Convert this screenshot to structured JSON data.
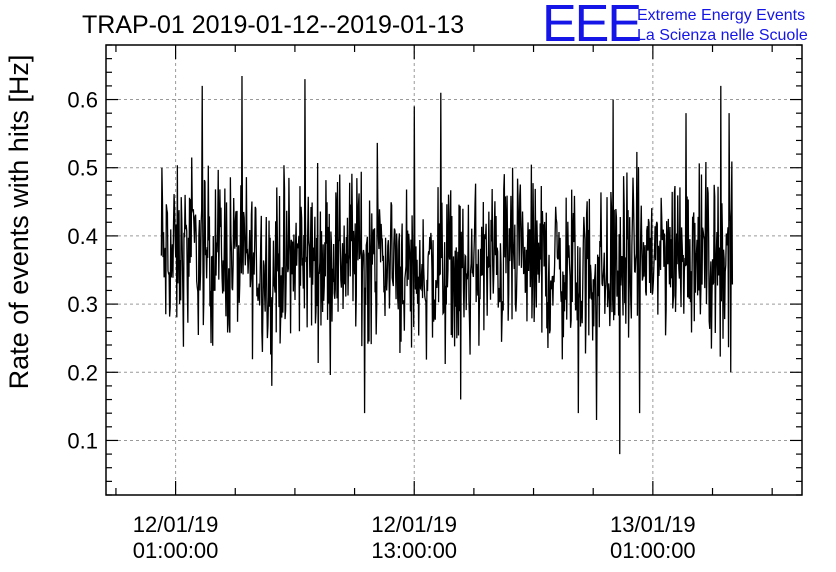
{
  "header": {
    "title": "TRAP-01 2019-01-12--2019-01-13",
    "logo_mark": "EEE",
    "logo_line1": "Extreme Energy Events",
    "logo_line2": "La Scienza nelle Scuole",
    "logo_color": "#1515e8"
  },
  "chart_data": {
    "type": "line",
    "title": "TRAP-01 2019-01-12--2019-01-13",
    "xlabel": "",
    "ylabel": "Rate of events with hits [Hz]",
    "ylim": [
      0.02,
      0.68
    ],
    "xlim": [
      "2019-01-11 21:30",
      "2019-01-13 08:30"
    ],
    "grid": true,
    "y_ticks": [
      "0.1",
      "0.2",
      "0.3",
      "0.4",
      "0.5",
      "0.6"
    ],
    "x_ticks": [
      {
        "date": "12/01/19",
        "time": "01:00:00"
      },
      {
        "date": "12/01/19",
        "time": "13:00:00"
      },
      {
        "date": "13/01/19",
        "time": "01:00:00"
      }
    ],
    "series": [
      {
        "color": "#000000",
        "x_range": [
          "2019-01-12 00:17",
          "2019-01-13 05:00"
        ],
        "sampling": "about 6 readings per 10 minutes",
        "mean": 0.36,
        "typical_band": [
          0.27,
          0.45
        ],
        "spikes": [
          {
            "x": "2019-01-12 00:18",
            "y": 0.5
          },
          {
            "x": "2019-01-12 02:20",
            "y": 0.62
          },
          {
            "x": "2019-01-12 05:50",
            "y": 0.18
          },
          {
            "x": "2019-01-12 07:30",
            "y": 0.63
          },
          {
            "x": "2019-01-12 10:30",
            "y": 0.14
          },
          {
            "x": "2019-01-12 13:00",
            "y": 0.59
          },
          {
            "x": "2019-01-12 14:20",
            "y": 0.61
          },
          {
            "x": "2019-01-12 15:20",
            "y": 0.16
          },
          {
            "x": "2019-01-12 21:15",
            "y": 0.14
          },
          {
            "x": "2019-01-12 22:10",
            "y": 0.13
          },
          {
            "x": "2019-01-12 23:00",
            "y": 0.6
          },
          {
            "x": "2019-01-12 23:20",
            "y": 0.08
          },
          {
            "x": "2019-01-13 00:20",
            "y": 0.14
          },
          {
            "x": "2019-01-13 02:40",
            "y": 0.58
          },
          {
            "x": "2019-01-13 04:25",
            "y": 0.62
          },
          {
            "x": "2019-01-13 04:50",
            "y": 0.58
          },
          {
            "x": "2019-01-13 04:55",
            "y": 0.2
          }
        ]
      }
    ]
  }
}
